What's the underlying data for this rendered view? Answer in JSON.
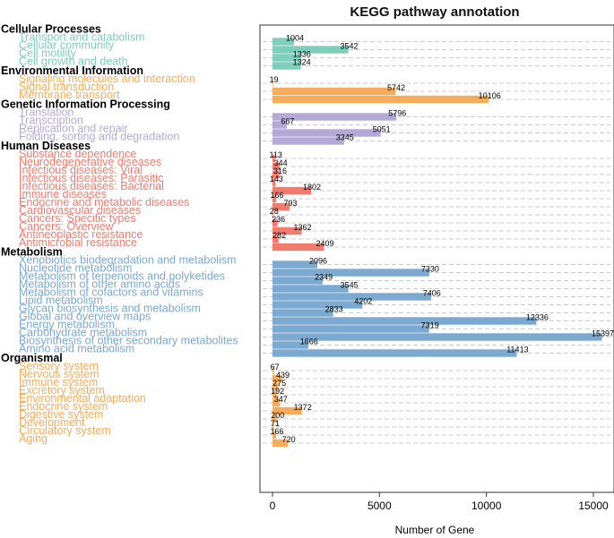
{
  "chart_data": {
    "type": "bar",
    "orientation": "horizontal",
    "title": "KEGG pathway annotation",
    "xlabel": "Number of Gene",
    "xlim": [
      0,
      16000
    ],
    "xticks": [
      0,
      5000,
      10000,
      15000
    ],
    "grid": "dashed",
    "groups": [
      {
        "name": "Cellular Processes",
        "color": "#7fcdbb",
        "items": [
          {
            "label": "Transport and catabolism",
            "value": 1004
          },
          {
            "label": "Cellular community",
            "value": 3542
          },
          {
            "label": "Cell motility",
            "value": 1336
          },
          {
            "label": "Cell growth and death",
            "value": 1324
          }
        ]
      },
      {
        "name": "Environmental Information",
        "color": "#f6ad5b",
        "items": [
          {
            "label": "Signaling molecules and interaction",
            "value": 19
          },
          {
            "label": "Signal transduction",
            "value": 5742
          },
          {
            "label": "Membrane transport",
            "value": 10106
          }
        ]
      },
      {
        "name": "Genetic Information Processing",
        "color": "#b3a9d6",
        "items": [
          {
            "label": "Translation",
            "value": 5796
          },
          {
            "label": "Transcription",
            "value": 667
          },
          {
            "label": "Replication and repair",
            "value": 5051
          },
          {
            "label": "Folding, sorting and degradation",
            "value": 3345
          }
        ]
      },
      {
        "name": "Human Diseases",
        "color": "#f27b6f",
        "items": [
          {
            "label": "Substance dependence",
            "value": 113
          },
          {
            "label": "Neurodegenerative diseases",
            "value": 344
          },
          {
            "label": "Infectious diseases: Viral",
            "value": 316
          },
          {
            "label": "Infectious diseases: Parasitic",
            "value": 143
          },
          {
            "label": "Infectious diseases: Bacterial",
            "value": 1802
          },
          {
            "label": "Immune diseases",
            "value": 166
          },
          {
            "label": "Endocrine and metabolic diseases",
            "value": 793
          },
          {
            "label": "Cardiovascular diseases",
            "value": 28
          },
          {
            "label": "Cancers: Specific types",
            "value": 236
          },
          {
            "label": "Cancers: Overview",
            "value": 1362
          },
          {
            "label": "Antineoplastic resistance",
            "value": 282
          },
          {
            "label": "Antimicrobial resistance",
            "value": 2409
          }
        ]
      },
      {
        "name": "Metabolism",
        "color": "#7ba9cf",
        "items": [
          {
            "label": "Xenobiotics biodegradation and metabolism",
            "value": 2096
          },
          {
            "label": "Nucleotide metabolism",
            "value": 7330
          },
          {
            "label": "Metabolism of terpenoids and polyketides",
            "value": 2349
          },
          {
            "label": "Metabolism of other amino acids",
            "value": 3545
          },
          {
            "label": "Metabolism of cofactors and vitamins",
            "value": 7406
          },
          {
            "label": "Lipid metabolism",
            "value": 4202
          },
          {
            "label": "Glycan biosynthesis and metabolism",
            "value": 2833
          },
          {
            "label": "Global and overview maps",
            "value": 12336
          },
          {
            "label": "Energy metabolism",
            "value": 7319
          },
          {
            "label": "Carbohydrate metabolism",
            "value": 15397
          },
          {
            "label": "Biosynthesis of other secondary metabolites",
            "value": 1666
          },
          {
            "label": "Amino acid metabolism",
            "value": 11413
          }
        ]
      },
      {
        "name": "Organismal",
        "color": "#f6ad5b",
        "items": [
          {
            "label": "Sensory system",
            "value": 67
          },
          {
            "label": "Nervous system",
            "value": 439
          },
          {
            "label": "Immune system",
            "value": 275
          },
          {
            "label": "Excretory system",
            "value": 192
          },
          {
            "label": "Environmental adaptation",
            "value": 347
          },
          {
            "label": "Endocrine system",
            "value": 1372
          },
          {
            "label": "Digestive system",
            "value": 200
          },
          {
            "label": "Development",
            "value": 71
          },
          {
            "label": "Circulatory system",
            "value": 166
          },
          {
            "label": "Aging",
            "value": 720
          }
        ]
      }
    ]
  }
}
